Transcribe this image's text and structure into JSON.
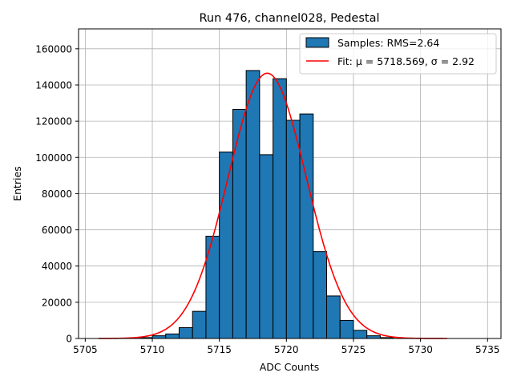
{
  "chart_data": {
    "type": "bar",
    "title": "Run 476, channel028, Pedestal",
    "xlabel": "ADC Counts",
    "ylabel": "Entries",
    "xlim": [
      5704.5,
      5736.0
    ],
    "ylim": [
      0,
      171000
    ],
    "xticks": [
      5705,
      5710,
      5715,
      5720,
      5725,
      5730,
      5735
    ],
    "yticks": [
      0,
      20000,
      40000,
      60000,
      80000,
      100000,
      120000,
      140000,
      160000
    ],
    "grid": true,
    "legend_position": "top-right",
    "bin_width": 1,
    "histogram": {
      "name": "Samples: RMS=2.64",
      "color": "#1f77b4",
      "edge_color": "#000000",
      "bins": [
        {
          "left": 5709,
          "count": 500
        },
        {
          "left": 5710,
          "count": 1500
        },
        {
          "left": 5711,
          "count": 2500
        },
        {
          "left": 5712,
          "count": 6000
        },
        {
          "left": 5713,
          "count": 15000
        },
        {
          "left": 5714,
          "count": 56500
        },
        {
          "left": 5715,
          "count": 103000
        },
        {
          "left": 5716,
          "count": 126500
        },
        {
          "left": 5717,
          "count": 148000
        },
        {
          "left": 5718,
          "count": 101500
        },
        {
          "left": 5719,
          "count": 143500
        },
        {
          "left": 5720,
          "count": 120500
        },
        {
          "left": 5721,
          "count": 124000
        },
        {
          "left": 5722,
          "count": 48000
        },
        {
          "left": 5723,
          "count": 23500
        },
        {
          "left": 5724,
          "count": 10000
        },
        {
          "left": 5725,
          "count": 4500
        },
        {
          "left": 5726,
          "count": 1500
        },
        {
          "left": 5727,
          "count": 500
        }
      ]
    },
    "fit": {
      "name": "Fit: μ = 5718.569, σ = 2.92",
      "color": "#ff0000",
      "mu": 5718.569,
      "sigma": 2.92,
      "amplitude": 146500,
      "x_range": [
        5706,
        5732
      ]
    }
  }
}
